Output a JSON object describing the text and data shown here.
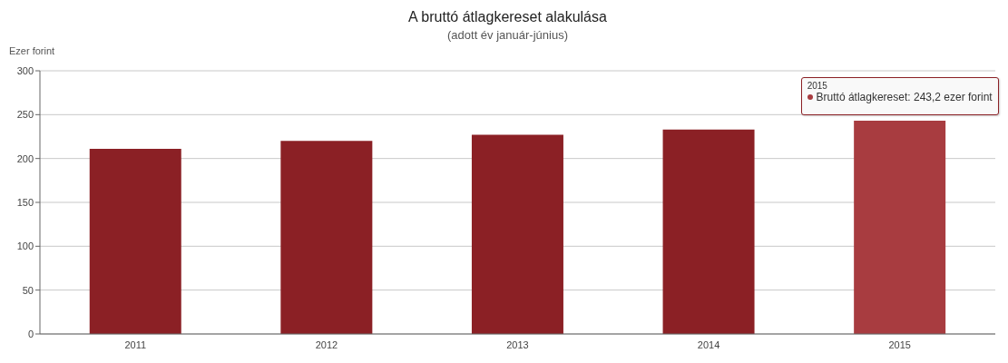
{
  "chart_data": {
    "type": "bar",
    "title": "A bruttó átlagkereset alakulása",
    "subtitle": "(adott év január-június)",
    "ylabel": "Ezer forint",
    "categories": [
      "2011",
      "2012",
      "2013",
      "2014",
      "2015"
    ],
    "values": [
      211,
      220,
      227,
      233,
      243.2
    ],
    "colors": [
      "#8b2025",
      "#8b2025",
      "#8b2025",
      "#8b2025",
      "#a83c40"
    ],
    "ylim": [
      0,
      300
    ],
    "yticks": [
      0,
      50,
      100,
      150,
      200,
      250,
      300
    ],
    "grid": "y",
    "legend": false,
    "annotations": [
      {
        "text": "Bruttó átlagkereset: 243,2 ezer forint",
        "x": "2015",
        "y": 243.2
      }
    ]
  }
}
